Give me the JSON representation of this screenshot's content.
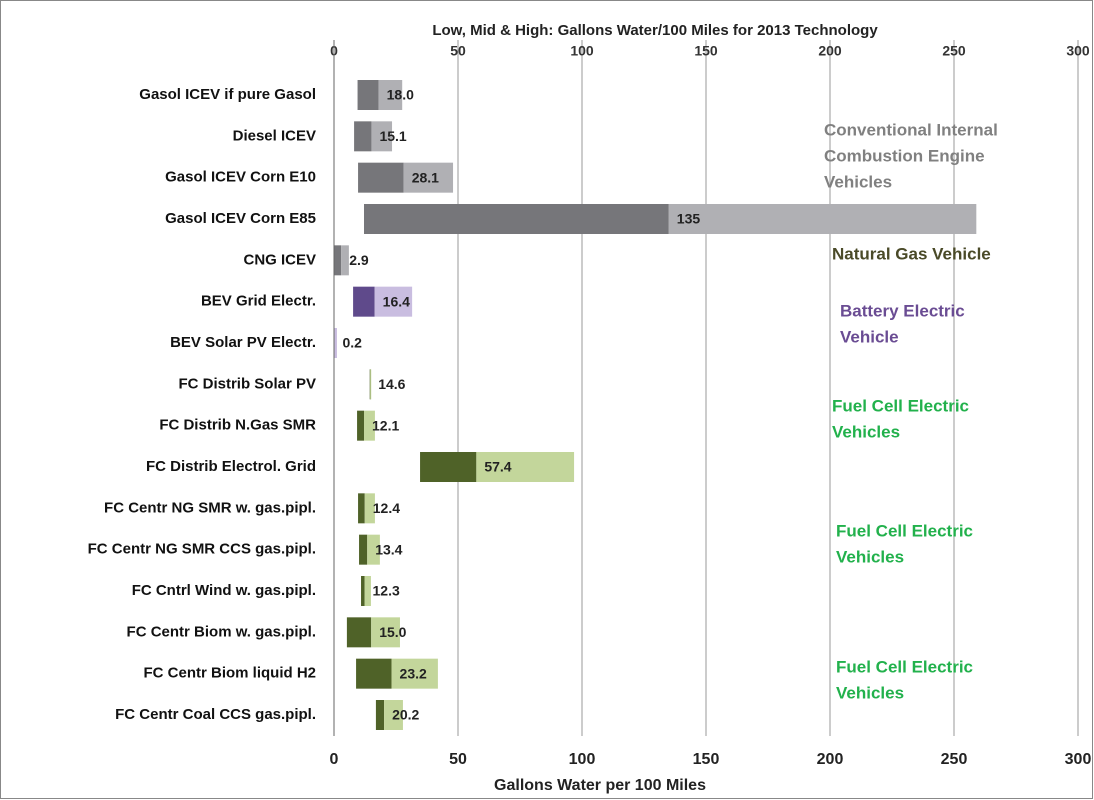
{
  "chart_data": {
    "type": "range_bar",
    "title": "Low, Mid & High: Gallons Water/100 Miles for 2013 Technology",
    "x_label": "Gallons Water per 100 Miles",
    "categories": [
      "Gasol ICEV if pure Gasol",
      "Diesel ICEV",
      "Gasol ICEV Corn E10",
      "Gasol ICEV Corn E85",
      "CNG ICEV",
      "BEV Grid Electr.",
      "BEV Solar PV Electr.",
      "FC Distrib Solar PV",
      "FC Distrib N.Gas SMR",
      "FC Distrib Electrol. Grid",
      "FC Centr NG SMR w. gas.pipl.",
      "FC Centr NG SMR CCS gas.pipl.",
      "FC Cntrl Wind w. gas.pipl.",
      "FC Centr Biom w. gas.pipl.",
      "FC Centr Biom liquid H2",
      "FC Centr Coal CCS gas.pipl."
    ],
    "low": [
      9.5,
      8.1,
      9.7,
      12.1,
      0,
      7.7,
      0,
      14.4,
      9.3,
      34.7,
      9.7,
      10.1,
      10.9,
      5.2,
      8.9,
      16.9
    ],
    "values": [
      18,
      15.1,
      28.1,
      135,
      2.9,
      16.4,
      0.2,
      14.6,
      12.1,
      57.4,
      12.4,
      13.4,
      12.3,
      15,
      23.2,
      20.2
    ],
    "value_labels": [
      "18.0",
      "15.1",
      "28.1",
      "135",
      "2.9",
      "16.4",
      "0.2",
      "14.6",
      "12.1",
      "57.4",
      "12.4",
      "13.4",
      "12.3",
      "15.0",
      "23.2",
      "20.2"
    ],
    "high": [
      27.5,
      23.4,
      48,
      259,
      6,
      31.5,
      1.2,
      14.8,
      16.5,
      96.8,
      16.5,
      18.5,
      14.9,
      26.6,
      41.9,
      27.8
    ],
    "colors": [
      [
        "#76767a",
        "#b0b0b4"
      ],
      [
        "#76767a",
        "#b0b0b4"
      ],
      [
        "#76767a",
        "#b0b0b4"
      ],
      [
        "#76767a",
        "#b0b0b4"
      ],
      [
        "#76767a",
        "#b0b0b4"
      ],
      [
        "#5f4a8b",
        "#c9bde0"
      ],
      [
        "#5f4a8b",
        "#c9bde0"
      ],
      [
        "#4f6228",
        "#c3d69b"
      ],
      [
        "#4f6228",
        "#c3d69b"
      ],
      [
        "#4f6228",
        "#c3d69b"
      ],
      [
        "#4f6228",
        "#c3d69b"
      ],
      [
        "#4f6228",
        "#c3d69b"
      ],
      [
        "#4f6228",
        "#c3d69b"
      ],
      [
        "#4f6228",
        "#c3d69b"
      ],
      [
        "#4f6228",
        "#c3d69b"
      ],
      [
        "#4f6228",
        "#c3d69b"
      ]
    ],
    "xlim": [
      0,
      300
    ],
    "xticks": [
      0,
      50,
      100,
      150,
      200,
      250,
      300
    ],
    "grid": true,
    "annotations": [
      {
        "lines": [
          "Conventional Internal",
          "Combustion Engine",
          "Vehicles"
        ],
        "color": "#808080"
      },
      {
        "lines": [
          "Natural Gas Vehicle"
        ],
        "color": "#4a4a28"
      },
      {
        "lines": [
          "Battery Electric",
          "Vehicle"
        ],
        "color": "#6a4c93"
      },
      {
        "lines": [
          "Fuel Cell Electric",
          "Vehicles"
        ],
        "color": "#22b14c"
      },
      {
        "lines": [
          "Fuel Cell Electric",
          "Vehicles"
        ],
        "color": "#22b14c"
      },
      {
        "lines": [
          "Fuel Cell Electric",
          "Vehicles"
        ],
        "color": "#22b14c"
      }
    ]
  }
}
